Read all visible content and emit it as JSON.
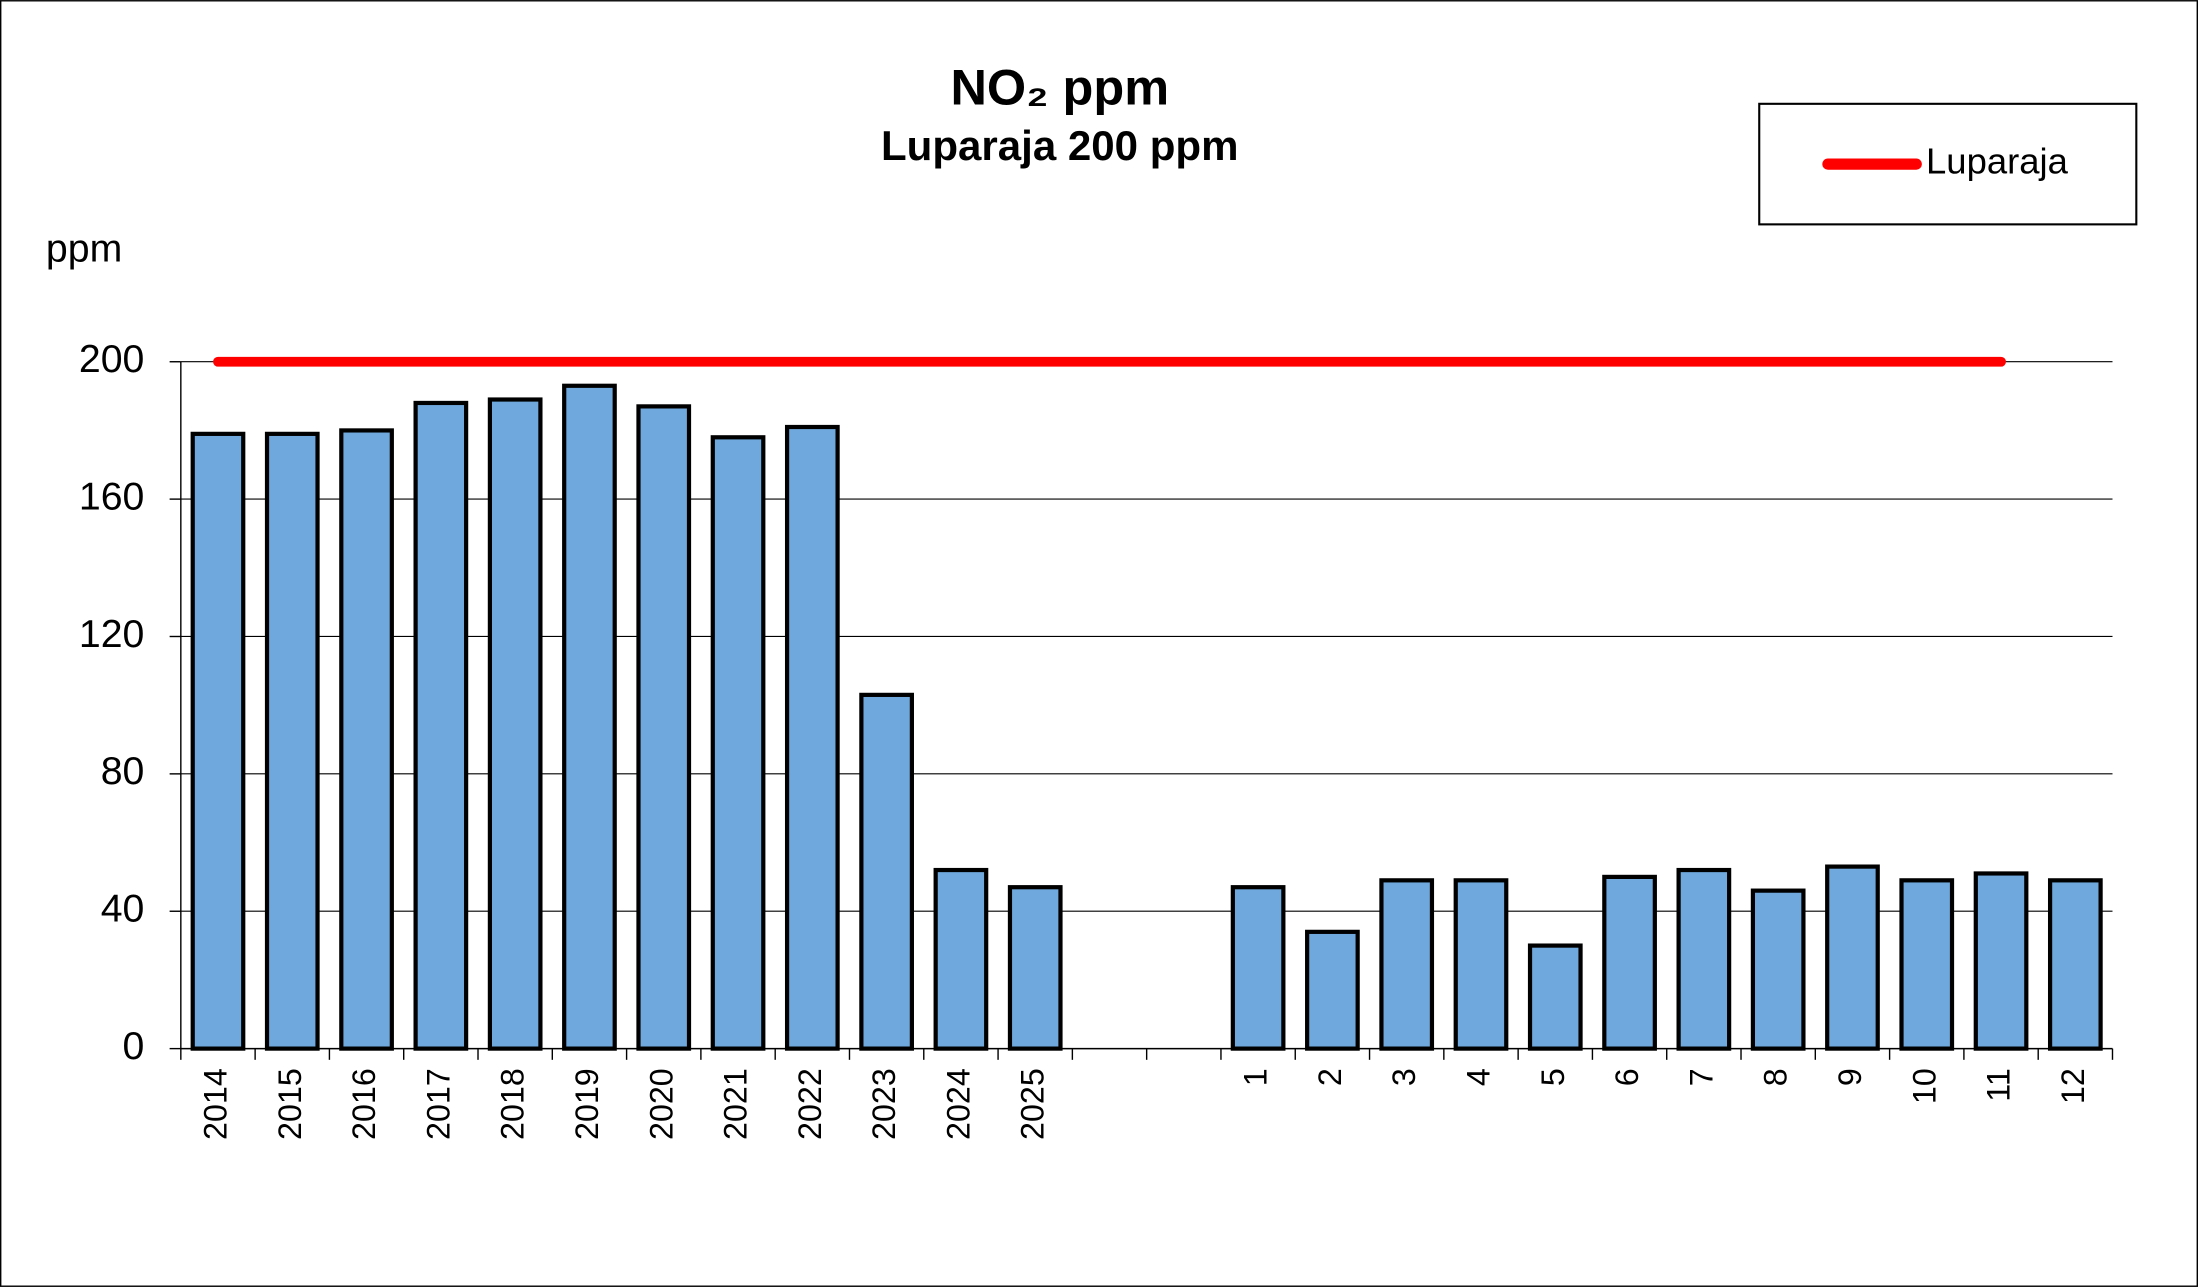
{
  "chart_data": {
    "type": "bar",
    "title": "NO₂ ppm",
    "subtitle": "Luparaja 200 ppm",
    "y_label": "ppm",
    "categories": [
      "2014",
      "2015",
      "2016",
      "2017",
      "2018",
      "2019",
      "2020",
      "2021",
      "2022",
      "2023",
      "2024",
      "2025",
      null,
      null,
      "1",
      "2",
      "3",
      "4",
      "5",
      "6",
      "7",
      "8",
      "9",
      "10",
      "11",
      "12"
    ],
    "series": [
      {
        "type": "bar",
        "color": "#6fa8dc",
        "values": [
          179,
          179,
          180,
          188,
          189,
          193,
          187,
          178,
          181,
          103,
          52,
          47,
          null,
          null,
          47,
          34,
          49,
          49,
          30,
          50,
          52,
          46,
          53,
          49,
          51,
          49
        ]
      },
      {
        "type": "line",
        "name": "Luparaja",
        "color": "#ff0000",
        "values": [
          200,
          200,
          200,
          200,
          200,
          200,
          200,
          200,
          200,
          200,
          200,
          200,
          200,
          200,
          200,
          200,
          200,
          200,
          200,
          200,
          200,
          200,
          200,
          200,
          200,
          null
        ]
      }
    ],
    "ylim": [
      0,
      200
    ],
    "yticks": [
      0,
      40,
      80,
      120,
      160,
      200
    ],
    "grid": true,
    "legend": "top-right"
  }
}
